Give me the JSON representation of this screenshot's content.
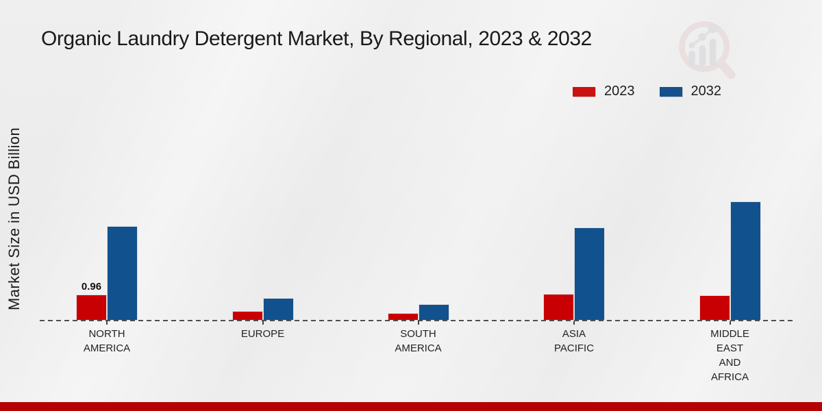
{
  "colors": {
    "series_2023_red": "#c90003",
    "series_2032_blue": "#11518d",
    "legend_red": "#cc1111",
    "legend_blue": "#15518c",
    "baseline_dash": "#4e4e4e",
    "footer_red": "#b50101",
    "background": "#ececec",
    "title_text": "#191919"
  },
  "watermark_icon": "magnifier-growth-bar-chart-logo",
  "chart_data": {
    "type": "bar",
    "title": "Organic Laundry Detergent Market, By Regional, 2023 & 2032",
    "xlabel": "",
    "ylabel": "Market Size in USD Billion",
    "categories": [
      "NORTH\nAMERICA",
      "EUROPE",
      "SOUTH\nAMERICA",
      "ASIA\nPACIFIC",
      "MIDDLE\nEAST\nAND\nAFRICA"
    ],
    "series": [
      {
        "name": "2023",
        "color": "#c90003",
        "values": [
          0.96,
          0.34,
          0.27,
          0.97,
          0.92
        ]
      },
      {
        "name": "2032",
        "color": "#11518d",
        "values": [
          3.45,
          0.82,
          0.61,
          3.4,
          4.35
        ]
      }
    ],
    "shown_value_labels": [
      {
        "category_index": 0,
        "series_index": 0,
        "label": "0.96"
      }
    ],
    "legend_position": "top-right",
    "grid": false,
    "baseline_style": "dashed",
    "ylim": [
      0,
      4.6
    ]
  }
}
